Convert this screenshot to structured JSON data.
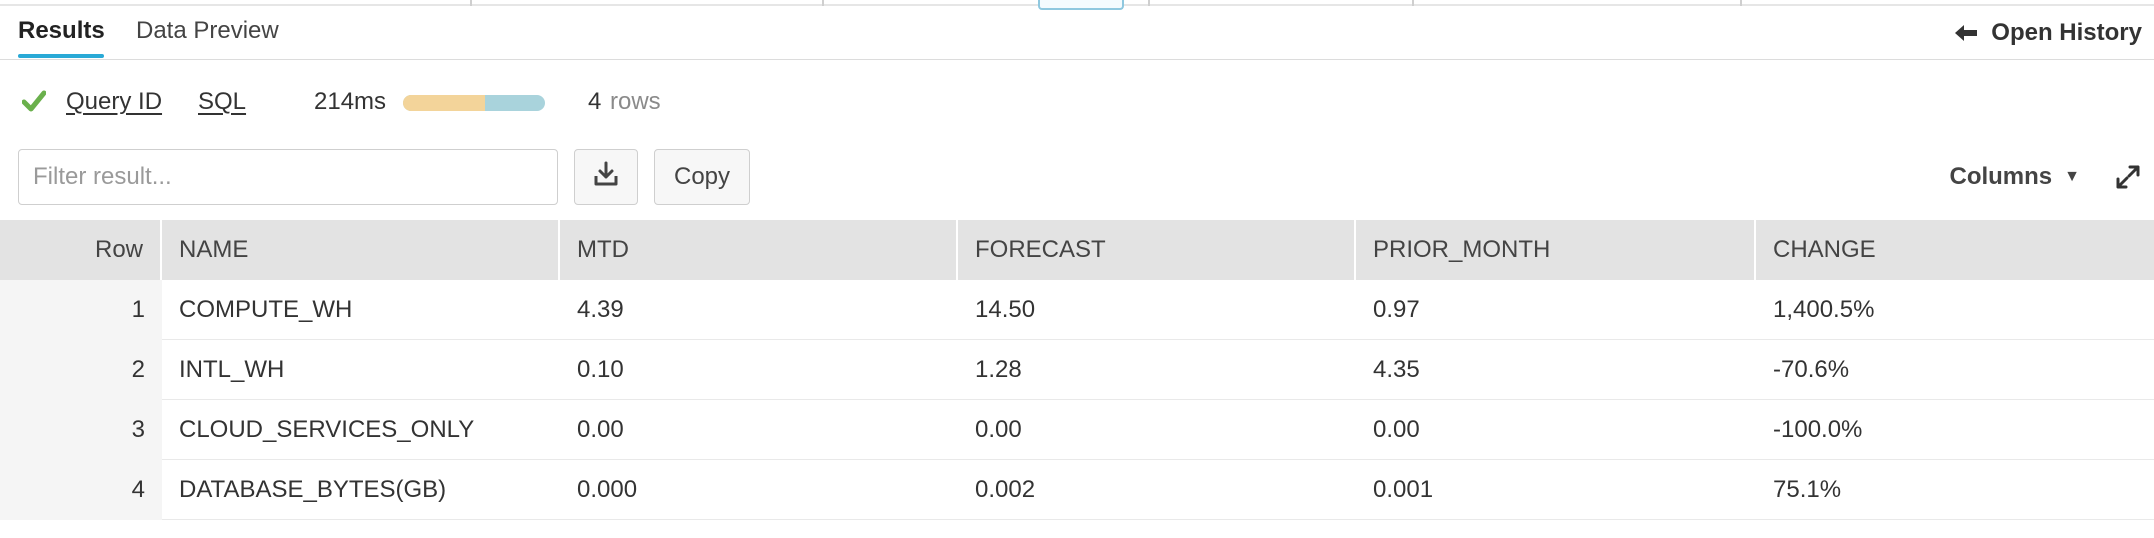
{
  "tabs": [
    {
      "label": "Results",
      "active": true
    },
    {
      "label": "Data Preview",
      "active": false
    }
  ],
  "open_history": {
    "label": "Open History",
    "icon": "arrow-left-icon"
  },
  "stats": {
    "status_icon": "check-icon",
    "status_color": "#6ab04c",
    "query_id_label": "Query ID",
    "sql_label": "SQL",
    "duration": "214ms",
    "progress_segments": [
      {
        "color": "#f3d49a",
        "fraction": 0.58
      },
      {
        "color": "#a9d3dc",
        "fraction": 0.42
      }
    ],
    "row_count": "4",
    "row_word": "rows"
  },
  "toolbar": {
    "filter_placeholder": "Filter result...",
    "download_icon": "download-icon",
    "copy_label": "Copy",
    "columns_label": "Columns",
    "columns_caret": "▼",
    "expand_icon": "expand-icon"
  },
  "table": {
    "headers": [
      "Row",
      "NAME",
      "MTD",
      "FORECAST",
      "PRIOR_MONTH",
      "CHANGE"
    ],
    "rows": [
      [
        "1",
        "COMPUTE_WH",
        "4.39",
        "14.50",
        "0.97",
        "1,400.5%"
      ],
      [
        "2",
        "INTL_WH",
        "0.10",
        "1.28",
        "4.35",
        "-70.6%"
      ],
      [
        "3",
        "CLOUD_SERVICES_ONLY",
        "0.00",
        "0.00",
        "0.00",
        "-100.0%"
      ],
      [
        "4",
        "DATABASE_BYTES(GB)",
        "0.000",
        "0.002",
        "0.001",
        "75.1%"
      ]
    ]
  },
  "colors": {
    "accent": "#29a9d6",
    "header_bg": "#e3e3e3"
  }
}
